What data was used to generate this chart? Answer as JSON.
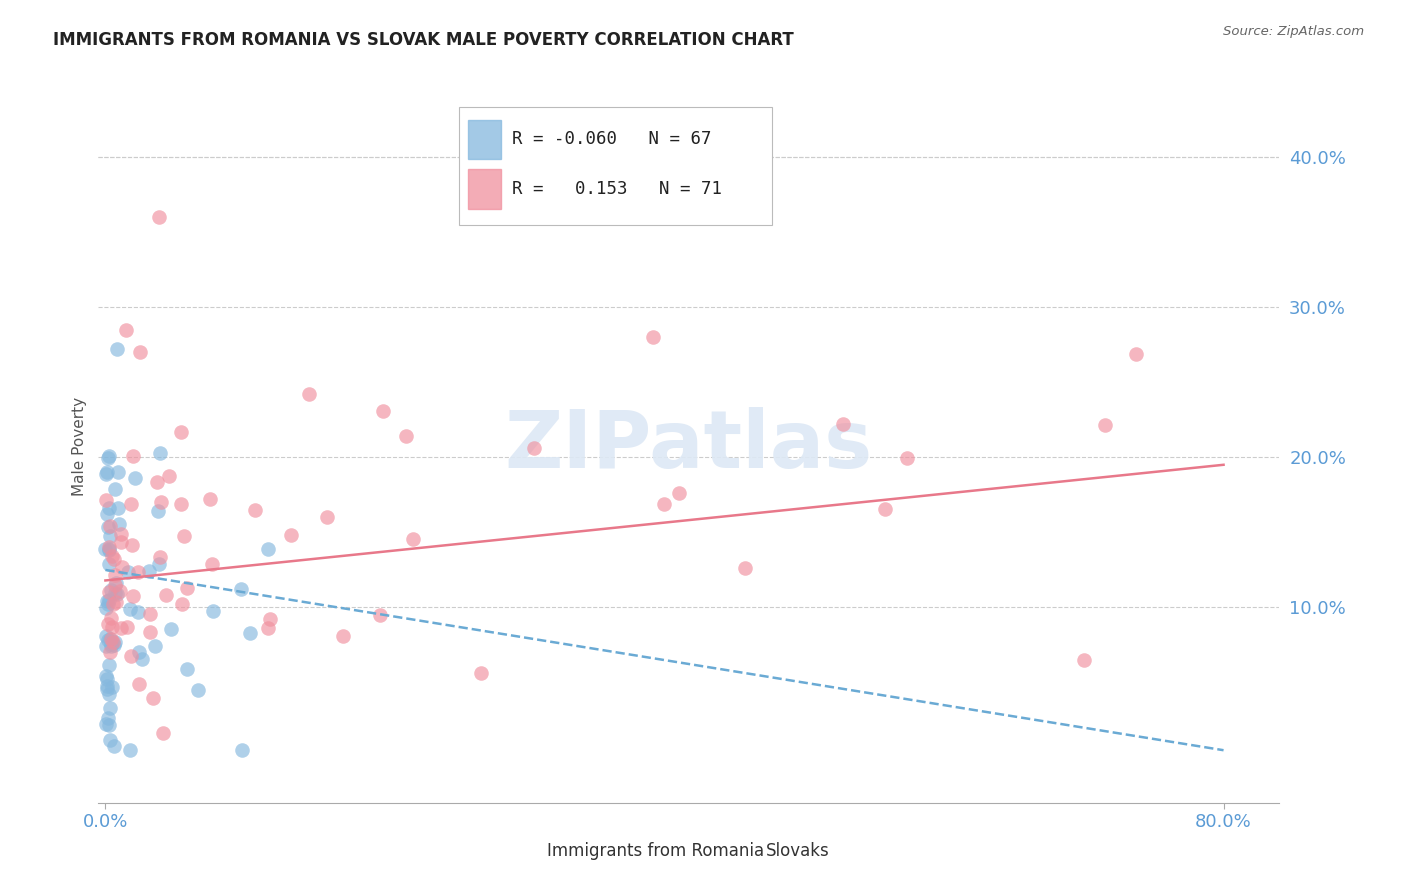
{
  "title": "IMMIGRANTS FROM ROMANIA VS SLOVAK MALE POVERTY CORRELATION CHART",
  "source": "Source: ZipAtlas.com",
  "ylabel": "Male Poverty",
  "ytick_labels": [
    "10.0%",
    "20.0%",
    "30.0%",
    "40.0%"
  ],
  "ytick_values": [
    0.1,
    0.2,
    0.3,
    0.4
  ],
  "xlim": [
    -0.005,
    0.84
  ],
  "ylim": [
    -0.03,
    0.445
  ],
  "background_color": "#ffffff",
  "grid_color": "#cccccc",
  "axis_color": "#5b9bd5",
  "watermark_color": "#dde8f5",
  "romania_R": -0.06,
  "romania_N": 67,
  "slovak_R": 0.153,
  "slovak_N": 71,
  "romania_scatter_color": "#85b8de",
  "slovak_scatter_color": "#f0909e",
  "romania_line_color": "#6aaad4",
  "slovak_line_color": "#e8788a",
  "romania_line_style": "--",
  "slovak_line_style": "-",
  "romania_line_start_y": 0.125,
  "romania_line_end_y": 0.005,
  "slovak_line_start_y": 0.118,
  "slovak_line_end_y": 0.195,
  "legend_title_color": "#333333",
  "legend_R1": "R = -0.060",
  "legend_N1": "N = 67",
  "legend_R2": "R =  0.153",
  "legend_N2": "N = 71",
  "bottom_legend_label1": "Immigrants from Romania",
  "bottom_legend_label2": "Slovaks"
}
